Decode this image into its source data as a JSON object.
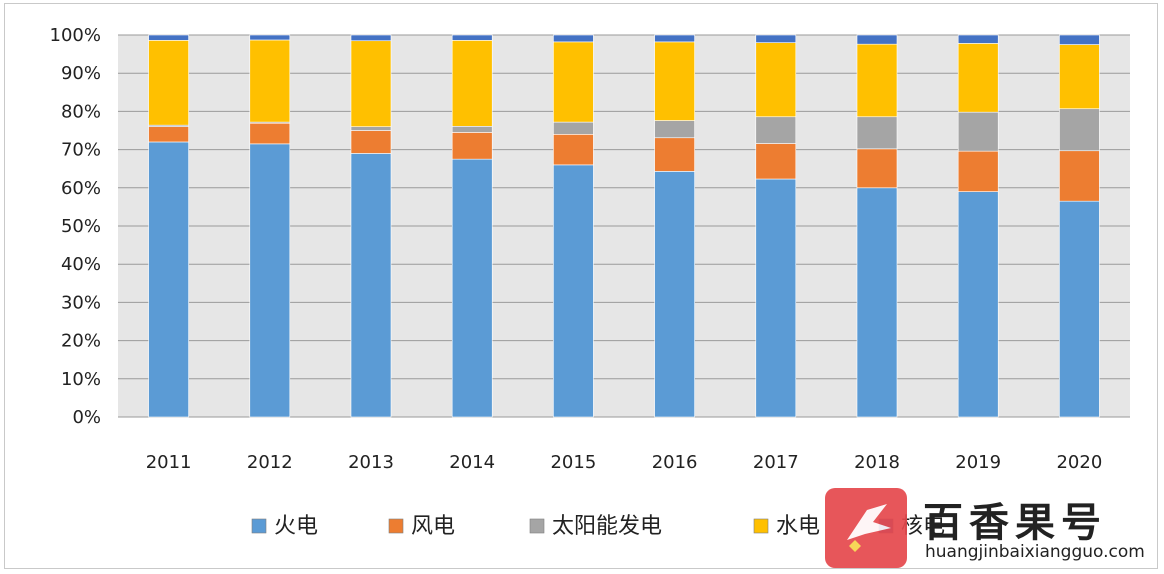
{
  "chart_data": {
    "type": "bar",
    "stacked": true,
    "categories": [
      "2011",
      "2012",
      "2013",
      "2014",
      "2015",
      "2016",
      "2017",
      "2018",
      "2019",
      "2020"
    ],
    "y_ticks": [
      "0%",
      "10%",
      "20%",
      "30%",
      "40%",
      "50%",
      "60%",
      "70%",
      "80%",
      "90%",
      "100%"
    ],
    "ylim": [
      0,
      100
    ],
    "grid": true,
    "legend_position": "bottom",
    "series": [
      {
        "name": "火电",
        "color": "#5b9bd5",
        "values": [
          72.0,
          71.5,
          69.0,
          67.5,
          66.0,
          64.3,
          62.3,
          60.0,
          59.0,
          56.5
        ]
      },
      {
        "name": "风电",
        "color": "#ed7d31",
        "values": [
          4.0,
          5.4,
          6.0,
          7.0,
          8.0,
          8.8,
          9.3,
          10.2,
          10.6,
          13.2
        ]
      },
      {
        "name": "太阳能发电",
        "color": "#a5a5a5",
        "values": [
          0.4,
          0.3,
          1.0,
          1.6,
          3.2,
          4.5,
          7.0,
          8.4,
          10.2,
          11.0
        ]
      },
      {
        "name": "水电",
        "color": "#ffc000",
        "values": [
          22.2,
          21.5,
          22.5,
          22.5,
          21.0,
          20.6,
          19.4,
          19.0,
          18.0,
          16.8
        ]
      },
      {
        "name": "核电",
        "color": "#4472c4",
        "values": [
          1.4,
          1.3,
          1.5,
          1.4,
          1.8,
          1.8,
          2.0,
          2.4,
          2.2,
          2.5
        ]
      }
    ]
  },
  "watermark": {
    "name": "百香果号",
    "url": "huangjinbaixiangguo.com"
  }
}
